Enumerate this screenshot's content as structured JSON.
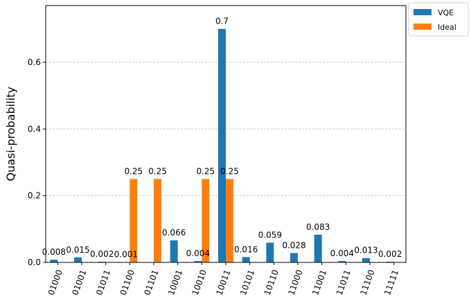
{
  "chart_data": {
    "type": "bar",
    "ylabel": "Quasi-probability",
    "ylim": [
      0,
      0.77
    ],
    "yticks": [
      0.0,
      0.2,
      0.4,
      0.6
    ],
    "ytick_labels": [
      "0.0",
      "0.2",
      "0.4",
      "0.6"
    ],
    "grid": "y-dashed",
    "legend_position": "outside-top-right",
    "categories": [
      "01000",
      "01001",
      "01011",
      "01100",
      "01101",
      "10001",
      "10010",
      "10011",
      "10101",
      "10110",
      "11000",
      "11001",
      "11011",
      "11100",
      "11111"
    ],
    "series": [
      {
        "name": "VQE",
        "color": "#1f77b4",
        "values": [
          0.008,
          0.015,
          0.002,
          0.001,
          0,
          0.066,
          0.004,
          0.7,
          0.016,
          0.059,
          0.028,
          0.083,
          0.004,
          0.013,
          0.002
        ],
        "labels": [
          "0.008",
          "0.015",
          "0.002",
          "0.001",
          "",
          "0.066",
          "0.004",
          "0.7",
          "0.016",
          "0.059",
          "0.028",
          "0.083",
          "0.004",
          "0.013",
          "0.002"
        ]
      },
      {
        "name": "Ideal",
        "color": "#ff7f0e",
        "values": [
          0,
          0,
          0,
          0.25,
          0.25,
          0,
          0.25,
          0.25,
          0,
          0,
          0,
          0,
          0,
          0,
          0
        ],
        "labels": [
          "",
          "",
          "",
          "0.25",
          "0.25",
          "",
          "0.25",
          "0.25",
          "",
          "",
          "",
          "",
          "",
          "",
          ""
        ]
      }
    ]
  }
}
